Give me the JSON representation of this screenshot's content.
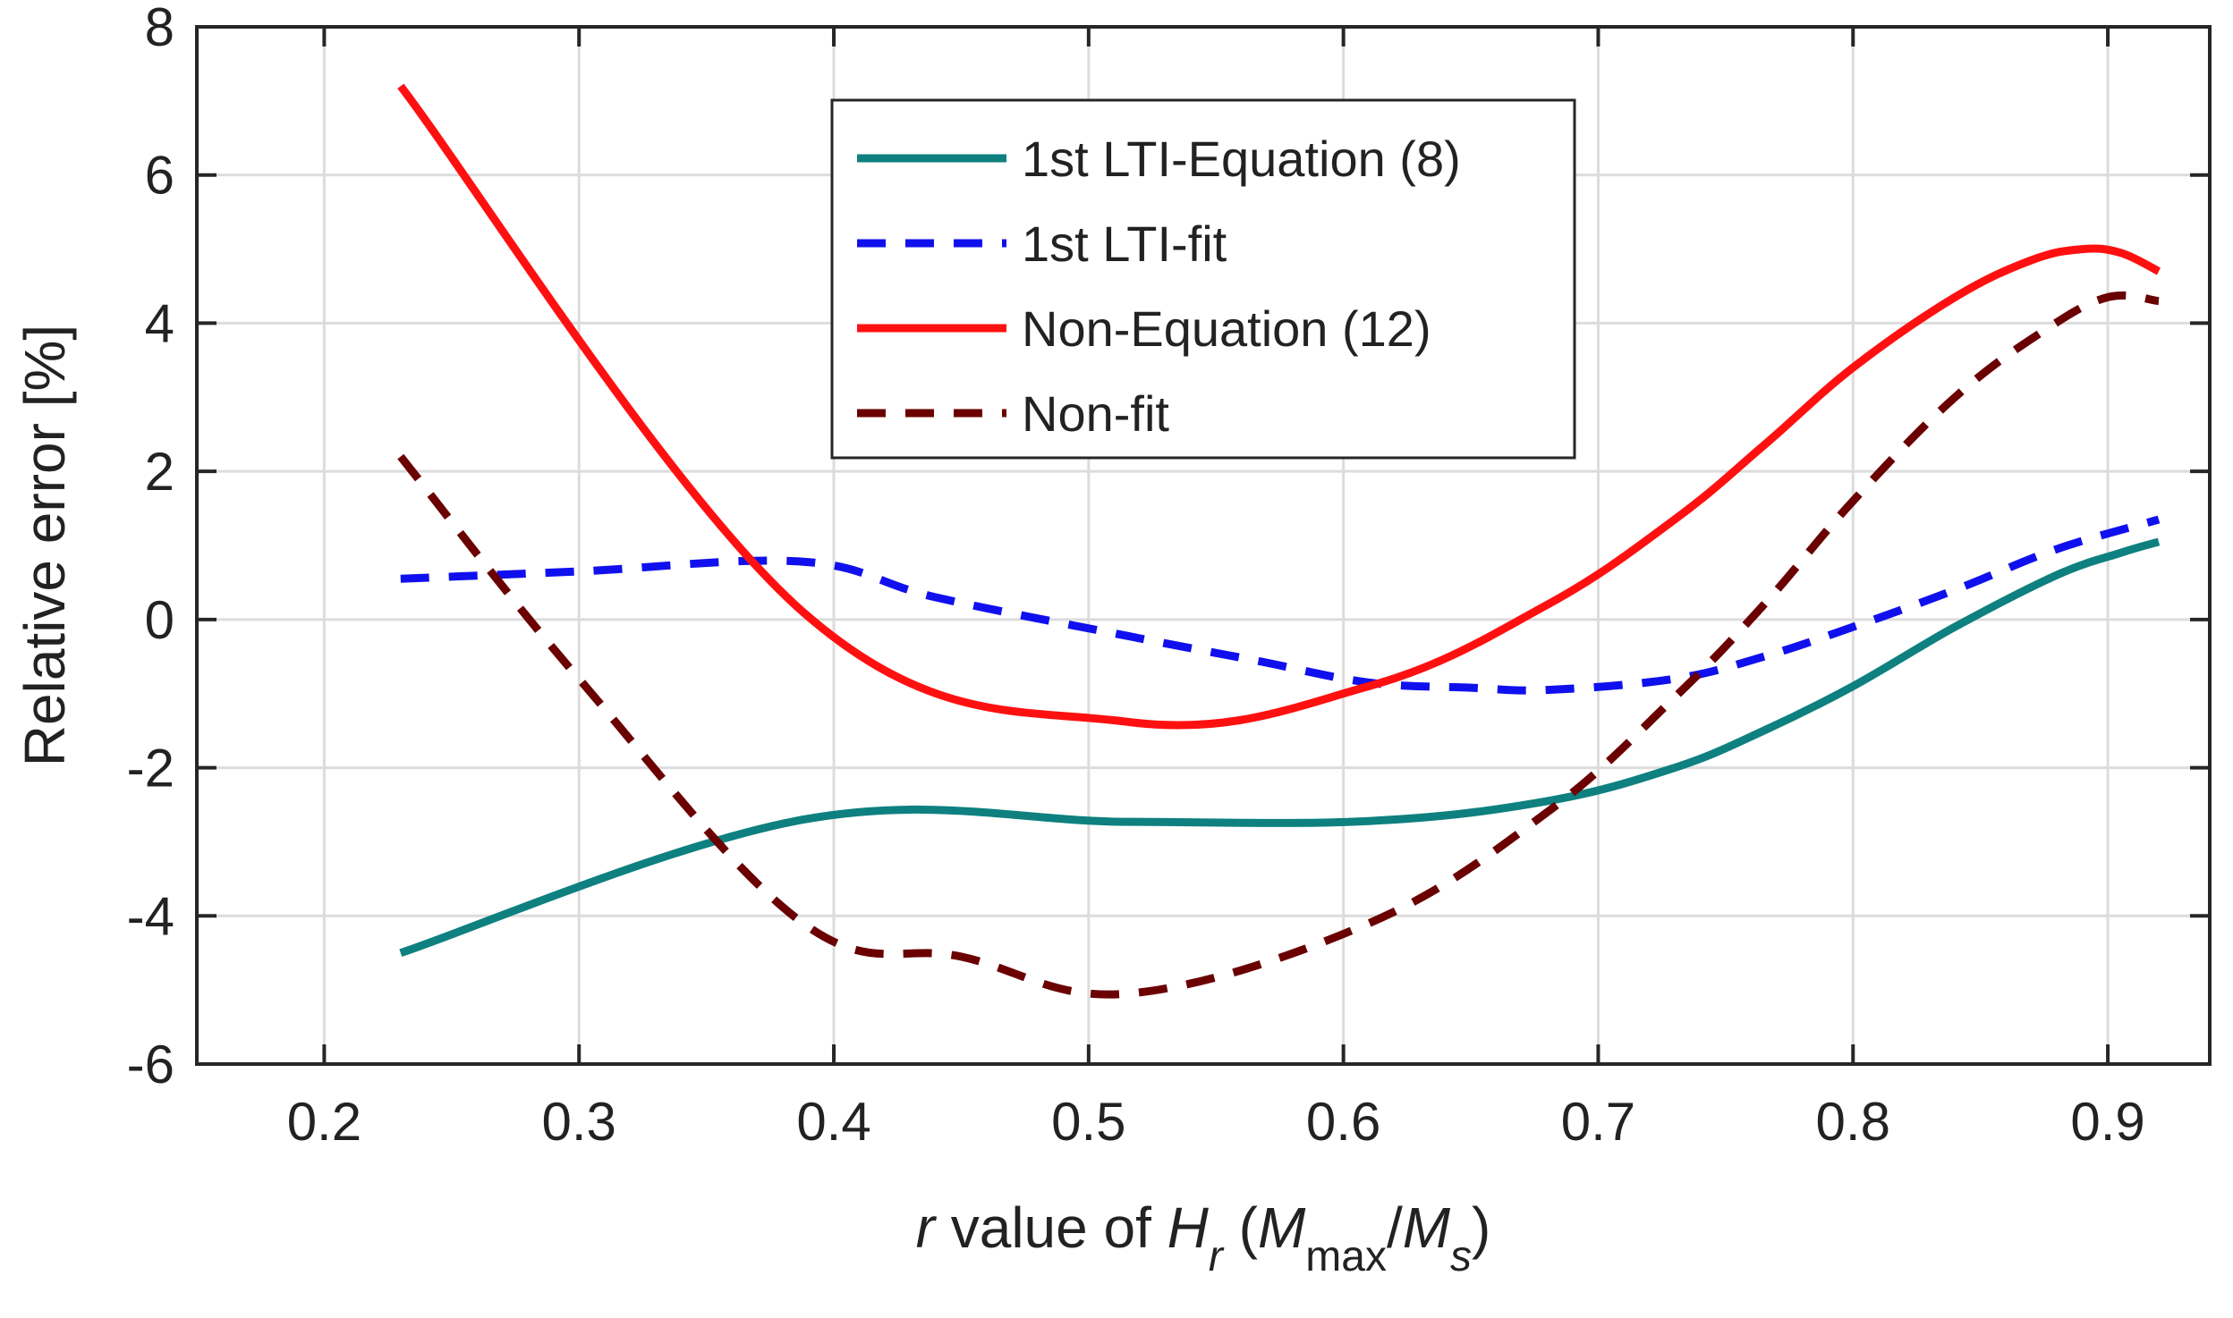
{
  "chart_data": {
    "type": "line",
    "title": "",
    "xlabel_parts": [
      {
        "text": "r",
        "style": "italic"
      },
      {
        "text": " value of ",
        "style": "normal"
      },
      {
        "text": "H",
        "style": "italic"
      },
      {
        "text": "r",
        "style": "italic-sub"
      },
      {
        "text": " (",
        "style": "normal"
      },
      {
        "text": "M",
        "style": "italic"
      },
      {
        "text": "max",
        "style": "sub"
      },
      {
        "text": "/",
        "style": "normal"
      },
      {
        "text": "M",
        "style": "italic"
      },
      {
        "text": "s",
        "style": "italic-sub"
      },
      {
        "text": ")",
        "style": "normal"
      }
    ],
    "ylabel": "Relative error [%]",
    "xlim": [
      0.15,
      0.94
    ],
    "ylim": [
      -6,
      8
    ],
    "xticks": [
      0.2,
      0.3,
      0.4,
      0.5,
      0.6,
      0.7,
      0.8,
      0.9
    ],
    "xtick_labels": [
      "0.2",
      "0.3",
      "0.4",
      "0.5",
      "0.6",
      "0.7",
      "0.8",
      "0.9"
    ],
    "yticks": [
      -6,
      -4,
      -2,
      0,
      2,
      4,
      6,
      8
    ],
    "ytick_labels": [
      "-6",
      "-4",
      "-2",
      "0",
      "2",
      "4",
      "6",
      "8"
    ],
    "grid": true,
    "legend_position": "top-center",
    "series": [
      {
        "name": "1st LTI-Equation (8)",
        "color": "#0e8080",
        "dash": "solid",
        "x": [
          0.23,
          0.388,
          0.515,
          0.61,
          0.68,
          0.73,
          0.765,
          0.8,
          0.84,
          0.88,
          0.905,
          0.92
        ],
        "y": [
          -4.5,
          -2.7,
          -2.73,
          -2.72,
          -2.45,
          -2.0,
          -1.5,
          -0.9,
          -0.1,
          0.6,
          0.9,
          1.05
        ]
      },
      {
        "name": "1st LTI-fit",
        "color": "#1010ee",
        "dash": "dashed",
        "x": [
          0.23,
          0.3,
          0.388,
          0.44,
          0.515,
          0.565,
          0.61,
          0.65,
          0.68,
          0.73,
          0.765,
          0.8,
          0.84,
          0.88,
          0.92
        ],
        "y": [
          0.55,
          0.65,
          0.78,
          0.3,
          -0.22,
          -0.55,
          -0.85,
          -0.92,
          -0.95,
          -0.8,
          -0.5,
          -0.1,
          0.4,
          0.95,
          1.35
        ]
      },
      {
        "name": "Non-Equation (12)",
        "color": "#ff1010",
        "dash": "solid",
        "x": [
          0.23,
          0.388,
          0.515,
          0.61,
          0.68,
          0.73,
          0.765,
          0.8,
          0.84,
          0.87,
          0.89,
          0.905,
          0.92
        ],
        "y": [
          7.2,
          0.1,
          -1.38,
          -0.9,
          0.2,
          1.35,
          2.35,
          3.4,
          4.35,
          4.85,
          5.0,
          4.95,
          4.7
        ]
      },
      {
        "name": "Non-fit",
        "color": "#6b0000",
        "dash": "dashed",
        "x": [
          0.23,
          0.3,
          0.388,
          0.45,
          0.515,
          0.61,
          0.68,
          0.73,
          0.765,
          0.8,
          0.84,
          0.875,
          0.9,
          0.92
        ],
        "y": [
          2.2,
          -0.8,
          -4.1,
          -4.55,
          -5.05,
          -4.1,
          -2.6,
          -1.05,
          0.2,
          1.6,
          3.0,
          3.9,
          4.35,
          4.3
        ]
      }
    ]
  }
}
